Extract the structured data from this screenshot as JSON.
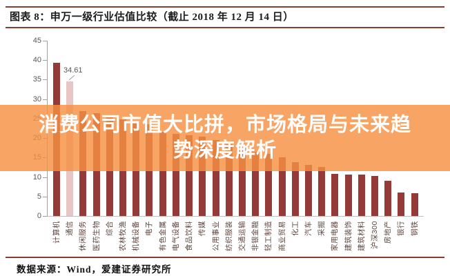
{
  "figure": {
    "caption": "图表 8：申万一级行业估值比较（截止 2018 年 12 月 14 日）",
    "source": "数据来源：Wind，爱建证券研究所"
  },
  "overlay_banner": {
    "line1": "消费公司市值大比拼，市场格局与未来趋",
    "line2": "势深度解析"
  },
  "chart_data": {
    "type": "bar",
    "title": "申万一级行业估值比较（截止 2018 年 12 月 14 日）",
    "categories": [
      "计算机",
      "通信",
      "休闲服务",
      "医药生物",
      "综合",
      "农林牧渔",
      "机械设备",
      "电子",
      "有色金属",
      "电气设备",
      "食品饮料",
      "传媒",
      "公用事业",
      "纺织服装",
      "交通运输",
      "非银金融",
      "轻工制造",
      "商业贸易",
      "化工",
      "汽车",
      "采掘",
      "家用电器",
      "建筑装饰",
      "建筑材料",
      "沪深300",
      "房地产",
      "银行",
      "钢铁"
    ],
    "values": [
      39.3,
      34.61,
      26.9,
      26.4,
      25.6,
      24.8,
      24.3,
      23.6,
      21.6,
      21.1,
      20.8,
      20.3,
      19.4,
      18.4,
      17.4,
      16.5,
      15.9,
      15.1,
      13.8,
      13.1,
      12.5,
      10.8,
      10.7,
      10.6,
      10.3,
      9.0,
      6.0,
      5.9
    ],
    "highlight_category": "通信",
    "highlight_label": "34.61",
    "xlabel": "",
    "ylabel": "",
    "ylim": [
      0,
      45
    ],
    "yticks": [
      0,
      5,
      10,
      15,
      20,
      25,
      30,
      35,
      40,
      45
    ],
    "grid": false,
    "legend": false
  },
  "colors": {
    "bar": "#943b39",
    "highlight_bar": "#e8c6c6",
    "rule": "#8e3b2f",
    "overlay_bg": "#f59042",
    "overlay_text": "#ffffff",
    "axis": "#a0a0a0",
    "axis_text": "#595959",
    "x_label_text": "#5f463f"
  }
}
